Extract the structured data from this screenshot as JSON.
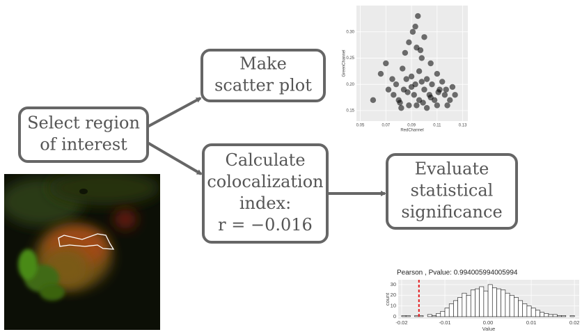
{
  "nodes": [
    {
      "lines": [
        "Select region",
        "of interest"
      ]
    },
    {
      "lines": [
        "Make",
        "scatter plot"
      ]
    },
    {
      "lines": [
        "Calculate",
        "colocalization",
        "index:",
        "r = −0.016"
      ]
    },
    {
      "lines": [
        "Evaluate",
        "statistical",
        "significance"
      ]
    }
  ],
  "chart_data": [
    {
      "type": "scatter",
      "xlabel": "RedChannel",
      "ylabel": "GreenChannel",
      "color": "#000000",
      "xlim": [
        0.047,
        0.134
      ],
      "xticks": [
        0.05,
        0.07,
        0.09,
        0.11,
        0.13
      ],
      "ylim": [
        0.13,
        0.35
      ],
      "yticks": [
        {
          "value": 0.15,
          "label": "0.15"
        },
        {
          "value": 0.2,
          "label": "0.20"
        },
        {
          "value": 0.25,
          "label": "0.25"
        },
        {
          "value": 0.3,
          "label": "0.30"
        }
      ],
      "x": [
        0.076,
        0.08,
        0.084,
        0.088,
        0.092,
        0.096,
        0.1,
        0.104,
        0.108,
        0.112,
        0.116,
        0.12,
        0.124,
        0.078,
        0.082,
        0.086,
        0.09,
        0.094,
        0.098,
        0.102,
        0.106,
        0.11,
        0.114,
        0.118,
        0.122,
        0.081,
        0.087,
        0.093,
        0.099,
        0.105,
        0.111,
        0.117,
        0.09,
        0.096,
        0.102,
        0.066,
        0.07,
        0.072,
        0.085,
        0.088,
        0.091,
        0.094,
        0.095,
        0.098,
        0.083,
        0.1,
        0.105,
        0.075,
        0.06,
        0.11,
        0.093,
        0.097
      ],
      "y": [
        0.18,
        0.17,
        0.19,
        0.16,
        0.18,
        0.17,
        0.19,
        0.18,
        0.17,
        0.19,
        0.18,
        0.17,
        0.18,
        0.2,
        0.155,
        0.21,
        0.195,
        0.16,
        0.205,
        0.155,
        0.2,
        0.16,
        0.205,
        0.16,
        0.195,
        0.165,
        0.185,
        0.2,
        0.165,
        0.175,
        0.185,
        0.19,
        0.215,
        0.225,
        0.21,
        0.22,
        0.24,
        0.19,
        0.26,
        0.28,
        0.3,
        0.27,
        0.33,
        0.25,
        0.23,
        0.29,
        0.24,
        0.21,
        0.17,
        0.22,
        0.31,
        0.265
      ]
    },
    {
      "type": "histogram",
      "title": "Pearson , Pvalue: 0.994005994005994",
      "xlabel": "Value",
      "ylabel": "count",
      "xlim": [
        -0.0208,
        0.0211
      ],
      "xticks": [
        -0.02,
        -0.01,
        {
          "value": 0,
          "label": "0.00"
        },
        0.01,
        0.02
      ],
      "ylim": [
        -2,
        34.5
      ],
      "yticks": [
        0,
        10,
        20,
        30
      ],
      "vline": -0.016,
      "vline_color": "#e41a1c",
      "bins": [
        -0.02,
        -0.019,
        -0.018,
        -0.017,
        -0.016,
        -0.015,
        -0.014,
        -0.013,
        -0.012,
        -0.011,
        -0.01,
        -0.009,
        -0.008,
        -0.007,
        -0.006,
        -0.005,
        -0.004,
        -0.003,
        -0.002,
        -0.001,
        0.0,
        0.001,
        0.002,
        0.003,
        0.004,
        0.005,
        0.006,
        0.007,
        0.008,
        0.009,
        0.01,
        0.011,
        0.012,
        0.013,
        0.014,
        0.015,
        0.016,
        0.017,
        0.018,
        0.019,
        0.02
      ],
      "values": [
        1,
        1,
        0,
        1,
        1,
        0,
        2,
        1,
        3,
        5,
        8,
        12,
        15,
        18,
        22,
        20,
        25,
        26,
        28,
        24,
        30,
        27,
        26,
        25,
        22,
        20,
        18,
        15,
        12,
        10,
        8,
        6,
        4,
        3,
        2,
        2,
        1,
        1,
        0,
        1
      ]
    }
  ]
}
